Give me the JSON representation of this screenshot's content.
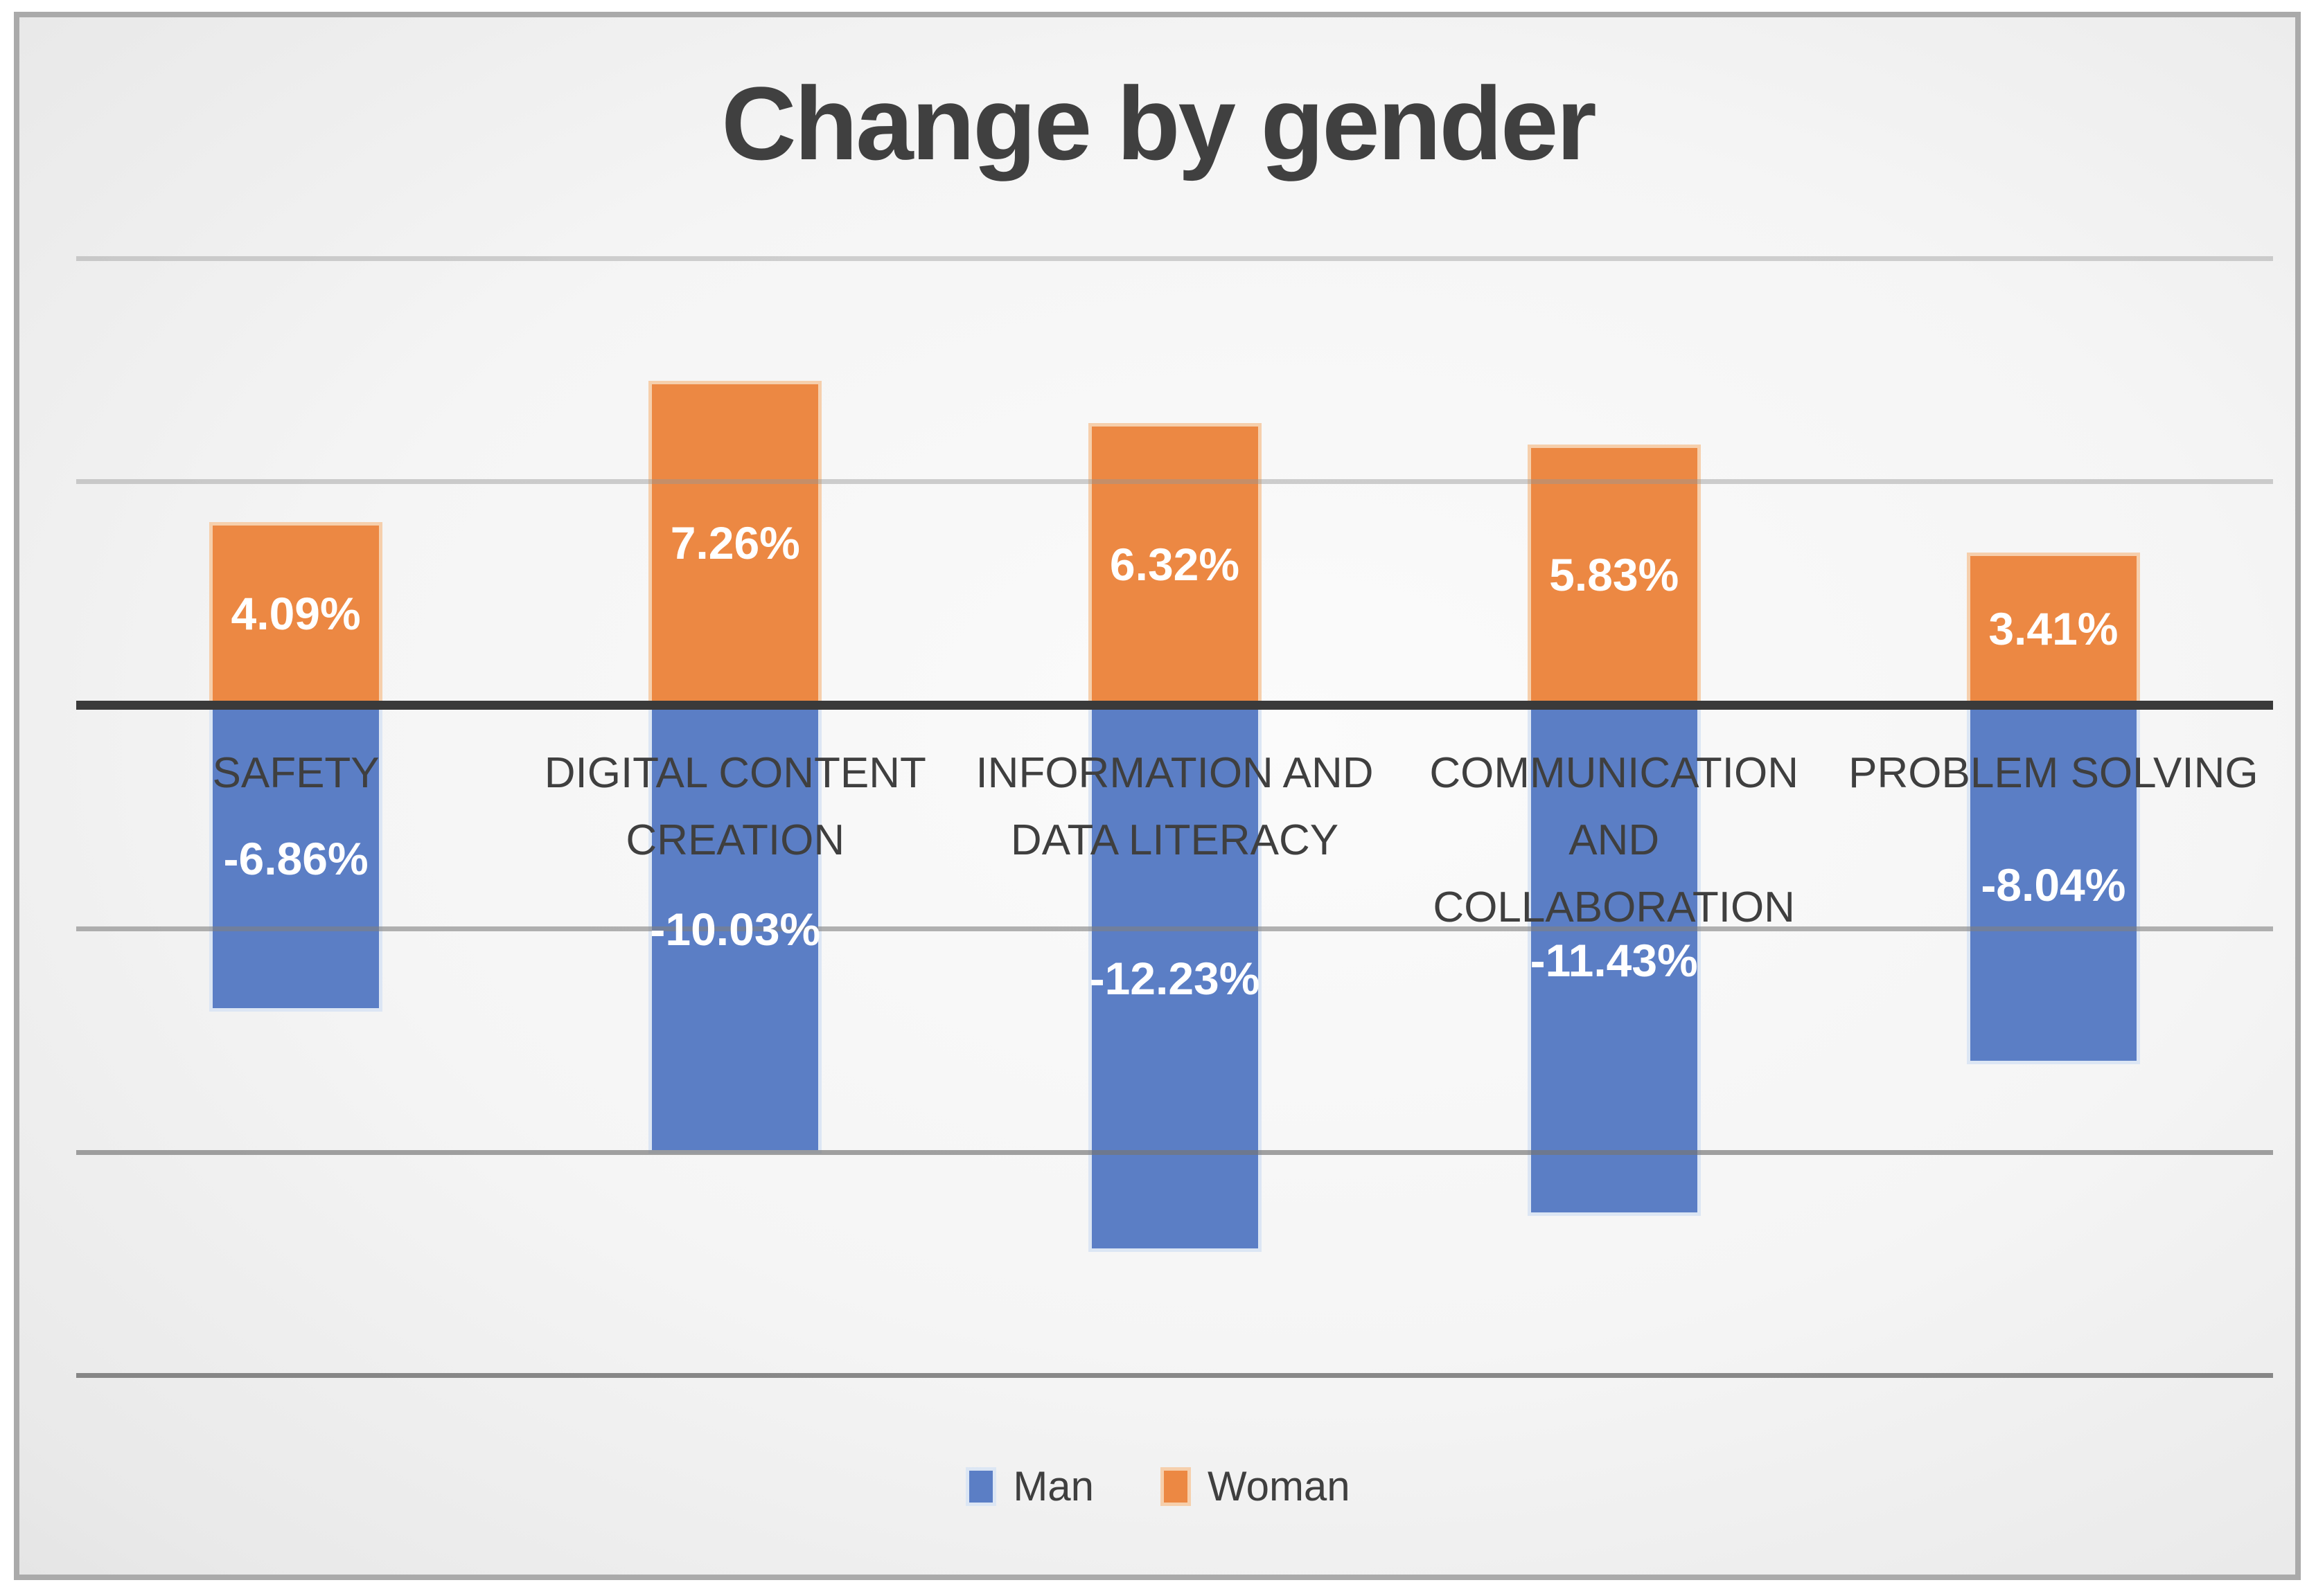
{
  "title": "Change by gender",
  "chart_data": {
    "type": "bar",
    "title": "Change by gender",
    "categories": [
      "SAFETY",
      "DIGITAL CONTENT CREATION",
      "INFORMATION AND DATA LITERACY",
      "COMMUNICATION AND COLLABORATION",
      "PROBLEM SOLVING"
    ],
    "category_display_lines": [
      [
        "SAFETY"
      ],
      [
        "DIGITAL CONTENT",
        "CREATION"
      ],
      [
        "INFORMATION AND",
        "DATA LITERACY"
      ],
      [
        "COMMUNICATION",
        "AND",
        "COLLABORATION"
      ],
      [
        "PROBLEM SOLVING"
      ]
    ],
    "series": [
      {
        "name": "Man",
        "color": "#5B7EC5",
        "border_color": "#DCE6F4",
        "values": [
          -6.86,
          -10.03,
          -12.23,
          -11.43,
          -8.04
        ],
        "labels": [
          "-6.86%",
          "-10.03%",
          "-12.23%",
          "-11.43%",
          "-8.04%"
        ]
      },
      {
        "name": "Woman",
        "color": "#EC8843",
        "border_color": "#F6CFAC",
        "values": [
          4.09,
          7.26,
          6.32,
          5.83,
          3.41
        ],
        "labels": [
          "4.09%",
          "7.26%",
          "6.32%",
          "5.83%",
          "3.41%"
        ]
      }
    ],
    "xlabel": "",
    "ylabel": "",
    "ylim": [
      -15,
      10
    ],
    "gridline_values": [
      10,
      5,
      -5,
      -10,
      -15
    ],
    "zero_axis": true,
    "axis_color": "#3A3A3A",
    "text_color": "#3F3F3F",
    "grid": true,
    "legend_position": "bottom",
    "data_label_position": "center",
    "value_format": "percent"
  },
  "legend": {
    "items": [
      {
        "label": "Man",
        "color": "#5B7EC5",
        "border_color": "#DCE6F4"
      },
      {
        "label": "Woman",
        "color": "#EC8843",
        "border_color": "#F6CFAC"
      }
    ]
  }
}
